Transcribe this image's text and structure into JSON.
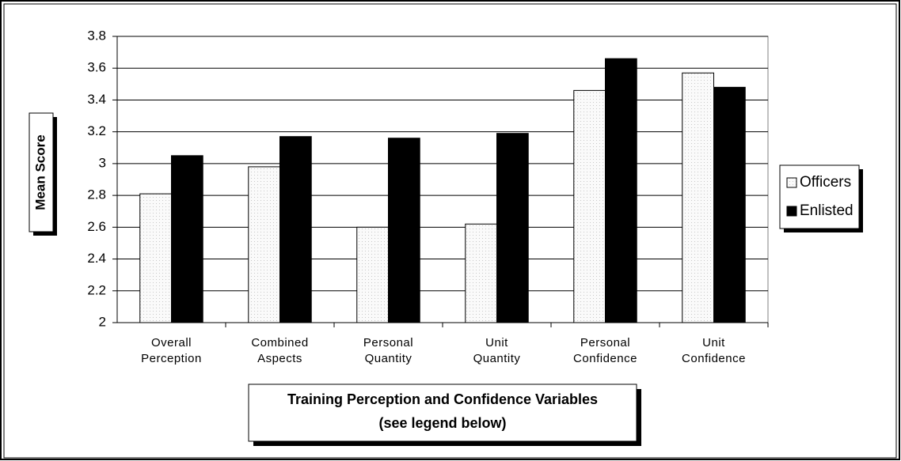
{
  "chart_data": {
    "type": "bar",
    "ylabel": "Mean Score",
    "xlabel": [
      "Training Perception and Confidence Variables",
      "(see legend below)"
    ],
    "categories": [
      [
        "Overall",
        "Perception"
      ],
      [
        "Combined",
        "Aspects"
      ],
      [
        "Personal",
        "Quantity"
      ],
      [
        "Unit",
        "Quantity"
      ],
      [
        "Personal",
        "Confidence"
      ],
      [
        "Unit",
        "Confidence"
      ]
    ],
    "series": [
      {
        "name": "Officers",
        "color": "#f4f4f4",
        "values": [
          2.81,
          2.98,
          2.6,
          2.62,
          3.46,
          3.57
        ]
      },
      {
        "name": "Enlisted",
        "color": "#000000",
        "values": [
          3.05,
          3.17,
          3.16,
          3.19,
          3.66,
          3.48
        ]
      }
    ],
    "ylim": [
      2,
      3.8
    ],
    "yticks": [
      2,
      2.2,
      2.4,
      2.6,
      2.8,
      3,
      3.2,
      3.4,
      3.6,
      3.8
    ],
    "grid": true,
    "legend": "right"
  }
}
